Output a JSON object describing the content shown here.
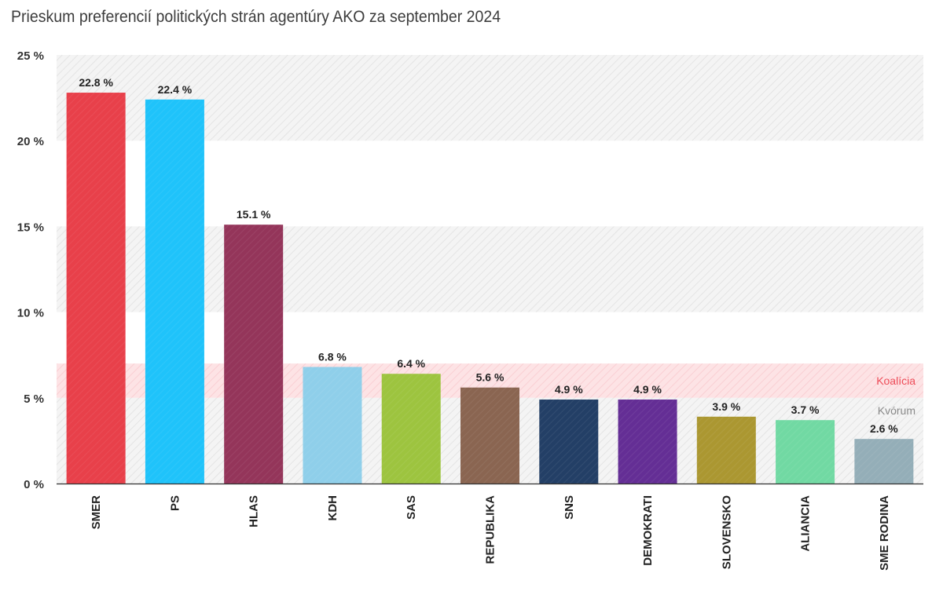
{
  "chart_data": {
    "type": "bar",
    "title": "Prieskum preferencií politických strán agentúry AKO za september 2024",
    "categories": [
      "SMER",
      "PS",
      "HLAS",
      "KDH",
      "SAS",
      "REPUBLIKA",
      "SNS",
      "DEMOKRATI",
      "SLOVENSKO",
      "ALIANCIA",
      "SME RODINA"
    ],
    "values": [
      22.8,
      22.4,
      15.1,
      6.8,
      6.4,
      5.6,
      4.9,
      4.9,
      3.9,
      3.7,
      2.6
    ],
    "value_labels": [
      "22.8 %",
      "22.4 %",
      "15.1 %",
      "6.8 %",
      "6.4 %",
      "5.6 %",
      "4.9 %",
      "4.9 %",
      "3.9 %",
      "3.7 %",
      "2.6 %"
    ],
    "colors": [
      "#e8404a",
      "#1fc3fa",
      "#94355a",
      "#8fcfea",
      "#9dc43f",
      "#8a6551",
      "#233f66",
      "#642e95",
      "#ab9731",
      "#71d9a3",
      "#94aeb8"
    ],
    "ylim": [
      0,
      25
    ],
    "yticks": [
      0,
      5,
      10,
      15,
      20,
      25
    ],
    "ytick_labels": [
      "0 %",
      "5 %",
      "10 %",
      "15 %",
      "20 %",
      "25 %"
    ],
    "grid": "alternating hatched bands",
    "annotations": [
      {
        "label": "Koalícia",
        "from": 5,
        "to": 7,
        "color": "#ee4d59"
      },
      {
        "label": "Kvórum",
        "at": 5,
        "color": "#8a8a8a"
      }
    ]
  }
}
